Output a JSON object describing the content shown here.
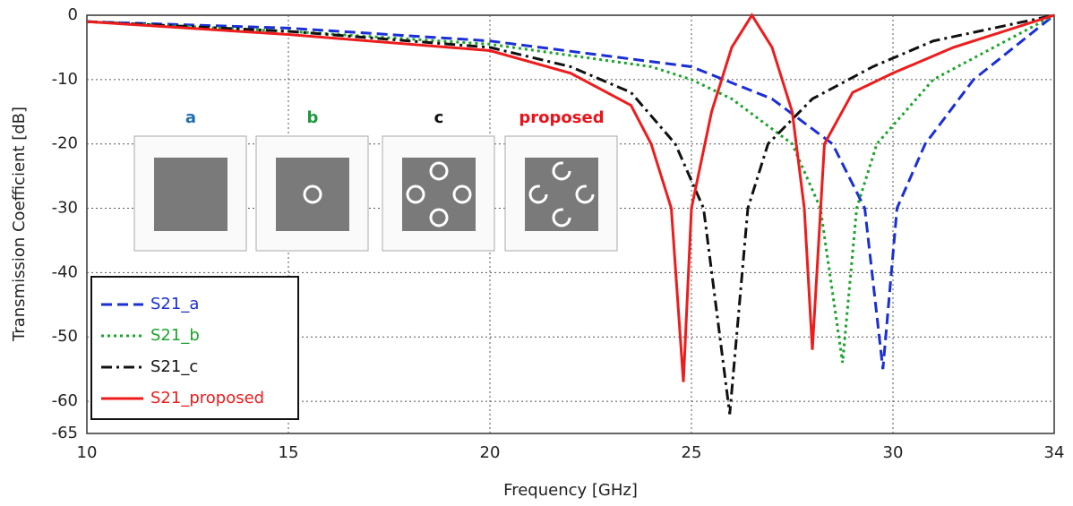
{
  "chart_data": {
    "type": "line",
    "xlabel": "Frequency [GHz]",
    "ylabel": "Transmission Coefficient [dB]",
    "xlim": [
      10,
      34
    ],
    "ylim": [
      -65,
      0
    ],
    "xticks": [
      10,
      15,
      20,
      25,
      30,
      34
    ],
    "yticks": [
      0,
      -10,
      -20,
      -30,
      -40,
      -50,
      -60,
      -65
    ],
    "grid": true,
    "legend": "lower left",
    "insets": [
      {
        "label": "a",
        "color": "#1f6fb5"
      },
      {
        "label": "b",
        "color": "#1a9a3a"
      },
      {
        "label": "c",
        "color": "#111111"
      },
      {
        "label": "proposed",
        "color": "#e8141b"
      }
    ],
    "series": [
      {
        "name": "S21_a",
        "color": "#1a2fd6",
        "dash": "dashed",
        "x": [
          10,
          15,
          20,
          25,
          27,
          28.5,
          29.3,
          29.75,
          30.1,
          30.8,
          32,
          33,
          34
        ],
        "values": [
          -1,
          -2,
          -4,
          -8,
          -13,
          -20,
          -30,
          -55,
          -30,
          -20,
          -10,
          -5,
          0
        ]
      },
      {
        "name": "S21_b",
        "color": "#1aa52a",
        "dash": "dotted",
        "x": [
          10,
          15,
          20,
          24,
          25,
          26,
          27.5,
          28.2,
          28.75,
          29.1,
          29.6,
          31,
          32.5,
          34
        ],
        "values": [
          -1,
          -2.5,
          -4.5,
          -8,
          -10,
          -13,
          -20,
          -30,
          -54,
          -30,
          -20,
          -10,
          -5,
          0
        ]
      },
      {
        "name": "S21_c",
        "color": "#111111",
        "dash": "dashdot",
        "x": [
          10,
          15,
          20,
          22,
          23.5,
          24.6,
          25.3,
          25.95,
          26.4,
          26.9,
          28,
          29.5,
          31,
          32.5,
          34
        ],
        "values": [
          -1,
          -2.5,
          -5,
          -8,
          -12,
          -20,
          -30,
          -62,
          -30,
          -20,
          -13,
          -8,
          -4,
          -2,
          0
        ]
      },
      {
        "name": "S21_proposed",
        "color": "#ee1c1c",
        "dash": "solid",
        "x": [
          10,
          15,
          20,
          22,
          23.5,
          24,
          24.5,
          24.8,
          25,
          25.5,
          26,
          26.5,
          27,
          27.5,
          27.8,
          28,
          28.3,
          29,
          30,
          31.5,
          33,
          34
        ],
        "values": [
          -1,
          -3,
          -5.5,
          -9,
          -14,
          -20,
          -30,
          -57,
          -30,
          -15,
          -5,
          0,
          -5,
          -15,
          -30,
          -52,
          -20,
          -12,
          -9,
          -5,
          -2,
          0
        ]
      }
    ]
  }
}
